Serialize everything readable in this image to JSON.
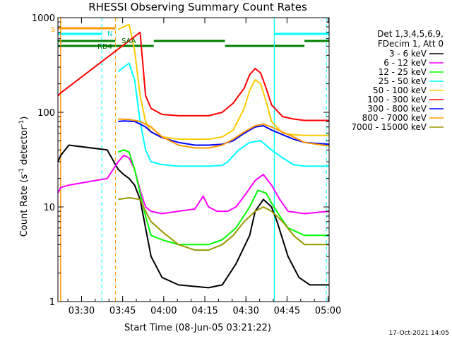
{
  "chart_data": {
    "type": "line",
    "title": "RHESSI Observing Summary Count Rates",
    "xlabel": "Start Time (08-Jun-05 03:21:22)",
    "ylabel": "Count Rate (s",
    "ylabel_exp": "-1",
    "ylabel_mid": " detector",
    "ylabel_end": ")",
    "y_scale": "log",
    "ylim": [
      1,
      1000
    ],
    "xlim_minutes": [
      0,
      99
    ],
    "y_ticks": [
      {
        "value": 1,
        "label": "1"
      },
      {
        "value": 10,
        "label": "10"
      },
      {
        "value": 100,
        "label": "100"
      },
      {
        "value": 1000,
        "label": "1000"
      }
    ],
    "x_ticks": [
      {
        "minute": 8.63,
        "label": "03:30"
      },
      {
        "minute": 23.63,
        "label": "03:45"
      },
      {
        "minute": 38.63,
        "label": "04:00"
      },
      {
        "minute": 53.63,
        "label": "04:15"
      },
      {
        "minute": 68.63,
        "label": "04:30"
      },
      {
        "minute": 83.63,
        "label": "04:45"
      },
      {
        "minute": 98.63,
        "label": "05:00"
      }
    ],
    "legend_header": [
      "Det 1,3,4,5,6,9,",
      "FDecim 1, Att 0"
    ],
    "series": [
      {
        "name": "3 - 6 keV",
        "color": "#000000",
        "points": [
          [
            0,
            30
          ],
          [
            1,
            35
          ],
          [
            4,
            45
          ],
          [
            18,
            40
          ],
          [
            22,
            25
          ],
          [
            24,
            22
          ],
          [
            26,
            20
          ],
          [
            28,
            17
          ],
          [
            30,
            12
          ],
          [
            32,
            6
          ],
          [
            34,
            3
          ],
          [
            38,
            1.8
          ],
          [
            44,
            1.5
          ],
          [
            55,
            1.4
          ],
          [
            60,
            1.5
          ],
          [
            65,
            2.5
          ],
          [
            70,
            5
          ],
          [
            72,
            9
          ],
          [
            75,
            12
          ],
          [
            78,
            10
          ],
          [
            80,
            7
          ],
          [
            84,
            3
          ],
          [
            88,
            1.8
          ],
          [
            92,
            1.5
          ],
          [
            99,
            1.5
          ]
        ]
      },
      {
        "name": "6 - 12 keV",
        "color": "#ff00ff",
        "points": [
          [
            0,
            14
          ],
          [
            1,
            16
          ],
          [
            4,
            17
          ],
          [
            18,
            20
          ],
          [
            22,
            30
          ],
          [
            24,
            35
          ],
          [
            26,
            33
          ],
          [
            28,
            25
          ],
          [
            30,
            15
          ],
          [
            32,
            10
          ],
          [
            34,
            9
          ],
          [
            38,
            8.5
          ],
          [
            44,
            9
          ],
          [
            50,
            9.5
          ],
          [
            53,
            13
          ],
          [
            55,
            10
          ],
          [
            58,
            9
          ],
          [
            62,
            9
          ],
          [
            65,
            10
          ],
          [
            68,
            13
          ],
          [
            72,
            19
          ],
          [
            75,
            22
          ],
          [
            78,
            17
          ],
          [
            81,
            12
          ],
          [
            84,
            9
          ],
          [
            90,
            8.5
          ],
          [
            99,
            9
          ]
        ]
      },
      {
        "name": "12 - 25 keV",
        "color": "#00ff00",
        "points": [
          [
            22,
            38
          ],
          [
            24,
            40
          ],
          [
            26,
            38
          ],
          [
            28,
            25
          ],
          [
            30,
            14
          ],
          [
            32,
            8
          ],
          [
            34,
            5
          ],
          [
            38,
            4.5
          ],
          [
            44,
            4
          ],
          [
            55,
            4
          ],
          [
            60,
            4.5
          ],
          [
            65,
            6
          ],
          [
            70,
            10
          ],
          [
            73,
            15
          ],
          [
            76,
            14
          ],
          [
            78,
            11
          ],
          [
            81,
            8
          ],
          [
            84,
            6
          ],
          [
            90,
            5
          ],
          [
            99,
            5
          ]
        ]
      },
      {
        "name": "25 - 50 keV",
        "color": "#00ffff",
        "points": [
          [
            22,
            270
          ],
          [
            24,
            300
          ],
          [
            26,
            330
          ],
          [
            28,
            220
          ],
          [
            30,
            80
          ],
          [
            32,
            40
          ],
          [
            34,
            30
          ],
          [
            38,
            28
          ],
          [
            44,
            27
          ],
          [
            55,
            27
          ],
          [
            60,
            27.5
          ],
          [
            62,
            30
          ],
          [
            66,
            40
          ],
          [
            70,
            48
          ],
          [
            74,
            50
          ],
          [
            78,
            40
          ],
          [
            82,
            33
          ],
          [
            86,
            28
          ],
          [
            90,
            27
          ],
          [
            99,
            27
          ]
        ]
      },
      {
        "name": "50 - 100 keV",
        "color": "#ffcc00",
        "points": [
          [
            22,
            750
          ],
          [
            24,
            800
          ],
          [
            26,
            850
          ],
          [
            28,
            450
          ],
          [
            30,
            150
          ],
          [
            32,
            80
          ],
          [
            34,
            62
          ],
          [
            38,
            55
          ],
          [
            44,
            52
          ],
          [
            55,
            52
          ],
          [
            60,
            55
          ],
          [
            64,
            65
          ],
          [
            68,
            110
          ],
          [
            70,
            170
          ],
          [
            72,
            220
          ],
          [
            74,
            200
          ],
          [
            76,
            130
          ],
          [
            78,
            80
          ],
          [
            82,
            60
          ],
          [
            86,
            58
          ],
          [
            90,
            57
          ],
          [
            99,
            57
          ]
        ]
      },
      {
        "name": "100 - 300 keV",
        "color": "#ff0000",
        "points": [
          [
            0,
            150
          ],
          [
            1,
            160
          ],
          [
            30,
            700
          ],
          [
            32,
            150
          ],
          [
            34,
            110
          ],
          [
            38,
            95
          ],
          [
            44,
            92
          ],
          [
            55,
            92
          ],
          [
            60,
            100
          ],
          [
            64,
            125
          ],
          [
            68,
            180
          ],
          [
            70,
            250
          ],
          [
            72,
            290
          ],
          [
            74,
            260
          ],
          [
            76,
            180
          ],
          [
            78,
            120
          ],
          [
            82,
            90
          ],
          [
            86,
            85
          ],
          [
            90,
            82
          ],
          [
            99,
            82
          ]
        ]
      },
      {
        "name": "300 - 800 keV",
        "color": "#0000ff",
        "points": [
          [
            22,
            80
          ],
          [
            24,
            81
          ],
          [
            28,
            80
          ],
          [
            30,
            75
          ],
          [
            32,
            70
          ],
          [
            34,
            62
          ],
          [
            38,
            54
          ],
          [
            44,
            48
          ],
          [
            50,
            45
          ],
          [
            55,
            45
          ],
          [
            60,
            46
          ],
          [
            64,
            50
          ],
          [
            68,
            60
          ],
          [
            72,
            70
          ],
          [
            75,
            72
          ],
          [
            78,
            65
          ],
          [
            82,
            58
          ],
          [
            86,
            52
          ],
          [
            90,
            48
          ],
          [
            99,
            46
          ]
        ]
      },
      {
        "name": "800 - 7000 keV",
        "color": "#ff9900",
        "points": [
          [
            22,
            85
          ],
          [
            26,
            84
          ],
          [
            30,
            80
          ],
          [
            34,
            70
          ],
          [
            38,
            55
          ],
          [
            44,
            45
          ],
          [
            50,
            42
          ],
          [
            55,
            42
          ],
          [
            60,
            45
          ],
          [
            64,
            52
          ],
          [
            68,
            62
          ],
          [
            72,
            72
          ],
          [
            75,
            75
          ],
          [
            78,
            70
          ],
          [
            82,
            62
          ],
          [
            86,
            55
          ],
          [
            90,
            48
          ],
          [
            99,
            44
          ]
        ]
      },
      {
        "name": "7000 - 15000 keV",
        "color": "#999900",
        "points": [
          [
            22,
            12
          ],
          [
            26,
            12.5
          ],
          [
            30,
            12
          ],
          [
            32,
            9
          ],
          [
            34,
            7
          ],
          [
            38,
            5.5
          ],
          [
            44,
            4
          ],
          [
            50,
            3.5
          ],
          [
            55,
            3.5
          ],
          [
            60,
            4
          ],
          [
            64,
            5
          ],
          [
            68,
            7
          ],
          [
            72,
            9
          ],
          [
            75,
            10
          ],
          [
            78,
            9
          ],
          [
            82,
            7
          ],
          [
            86,
            5
          ],
          [
            90,
            4
          ],
          [
            99,
            4
          ]
        ]
      }
    ],
    "flag_labels": {
      "s": "S",
      "n": "N",
      "saa": "SAA",
      "rd4": "RD4"
    },
    "timestamp": "17-Oct-2021 14:05"
  }
}
